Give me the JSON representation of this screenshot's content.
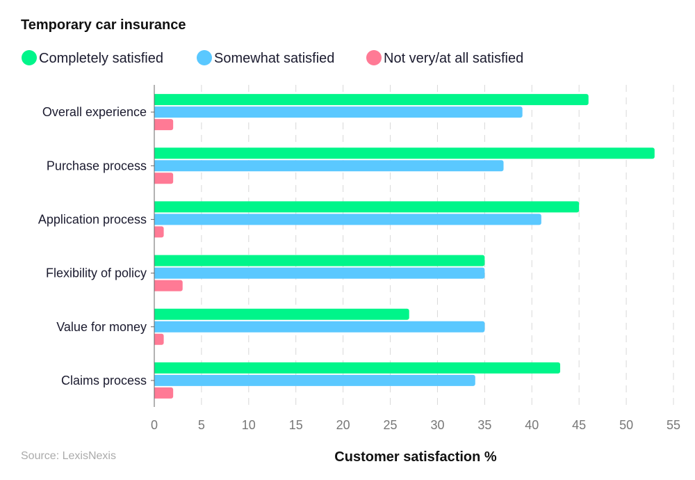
{
  "chart_data": {
    "type": "bar",
    "orientation": "horizontal",
    "title": "Temporary car insurance",
    "xlabel": "Customer satisfaction %",
    "ylabel": "",
    "source": "Source: LexisNexis",
    "xlim": [
      0,
      55
    ],
    "xticks": [
      0,
      5,
      10,
      15,
      20,
      25,
      30,
      35,
      40,
      45,
      50,
      55
    ],
    "grid": "vertical dashed",
    "legend_position": "top-left",
    "categories": [
      "Overall experience",
      "Purchase process",
      "Application process",
      "Flexibility of policy",
      "Value for money",
      "Claims process"
    ],
    "series": [
      {
        "name": "Completely satisfied",
        "color": "#00F58A",
        "values": [
          46,
          53,
          45,
          35,
          27,
          43
        ]
      },
      {
        "name": "Somewhat satisfied",
        "color": "#5AC8FF",
        "values": [
          39,
          37,
          41,
          35,
          35,
          34
        ]
      },
      {
        "name": "Not very/at all satisfied",
        "color": "#FF7A95",
        "values": [
          2,
          2,
          1,
          3,
          1,
          2
        ]
      }
    ]
  }
}
